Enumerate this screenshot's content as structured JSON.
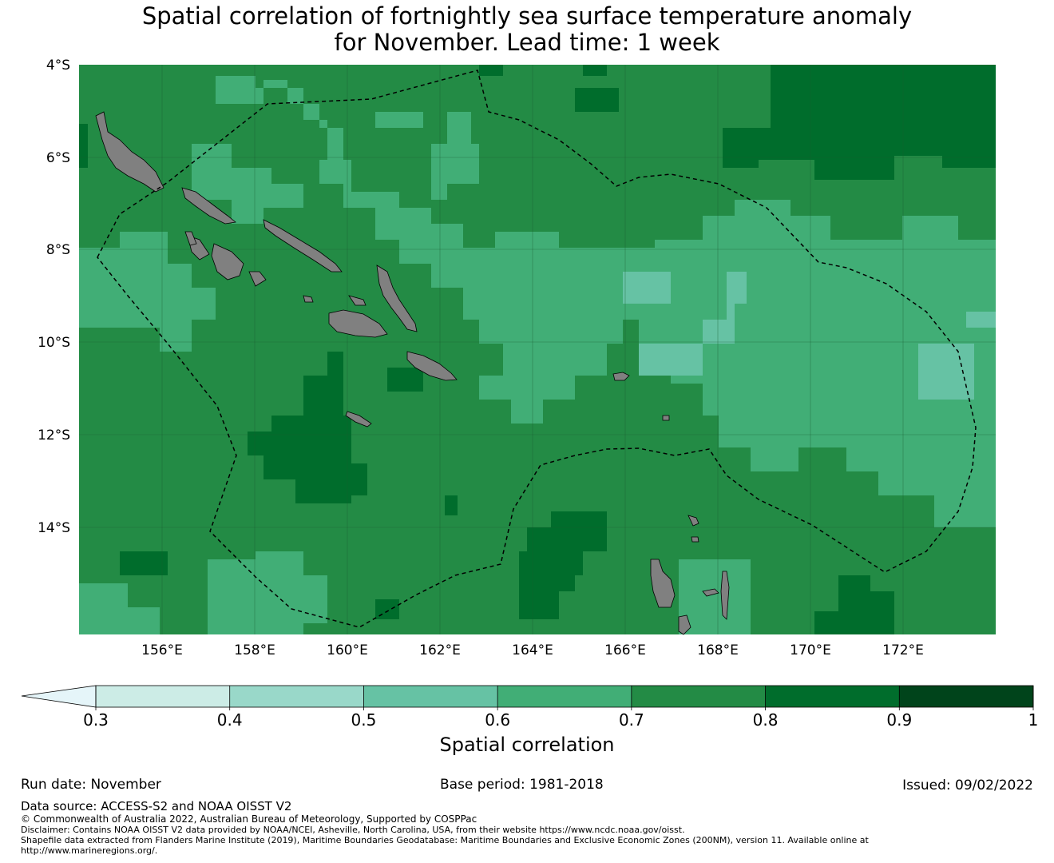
{
  "title_line1": "Spatial correlation of fortnightly sea surface temperature anomaly",
  "title_line2": "for November. Lead time: 1 week",
  "lat_labels": [
    "4°S",
    "6°S",
    "8°S",
    "10°S",
    "12°S",
    "14°S"
  ],
  "lon_labels": [
    "156°E",
    "158°E",
    "160°E",
    "162°E",
    "164°E",
    "166°E",
    "168°E",
    "170°E",
    "172°E"
  ],
  "colorbar": {
    "title": "Spatial correlation",
    "ticks": [
      "0.3",
      "0.4",
      "0.5",
      "0.6",
      "0.7",
      "0.8",
      "0.9",
      "1"
    ],
    "colors": [
      "#ccece6",
      "#99d8c9",
      "#66c2a4",
      "#41ae76",
      "#238b45",
      "#006d2c",
      "#00441b"
    ],
    "extend_color": "#e5f5f9"
  },
  "footer": {
    "run_date": "Run date: November",
    "base_period": "Base period: 1981-2018",
    "issued": "Issued: 09/02/2022",
    "data_source": "Data source: ACCESS-S2 and NOAA OISST V2",
    "copyright": "© Commonwealth of Australia 2022, Australian Bureau of Meteorology, Supported by COSPPac",
    "disclaimer": "Disclaimer: Contains NOAA OISST V2 data provided by NOAA/NCEI, Asheville, North Carolina, USA, from their website https://www.ncdc.noaa.gov/oisst.",
    "shapefile_1": "Shapefile data extracted from Flanders Marine Institute (2019), Maritime Boundaries Geodatabase: Maritime Boundaries and Exclusive Economic Zones (200NM), version 11. Available online at",
    "shapefile_2": "http://www.marineregions.org/."
  },
  "map_colors": {
    "background": "#238b45",
    "land": "#808080",
    "boundary": "#000000"
  }
}
